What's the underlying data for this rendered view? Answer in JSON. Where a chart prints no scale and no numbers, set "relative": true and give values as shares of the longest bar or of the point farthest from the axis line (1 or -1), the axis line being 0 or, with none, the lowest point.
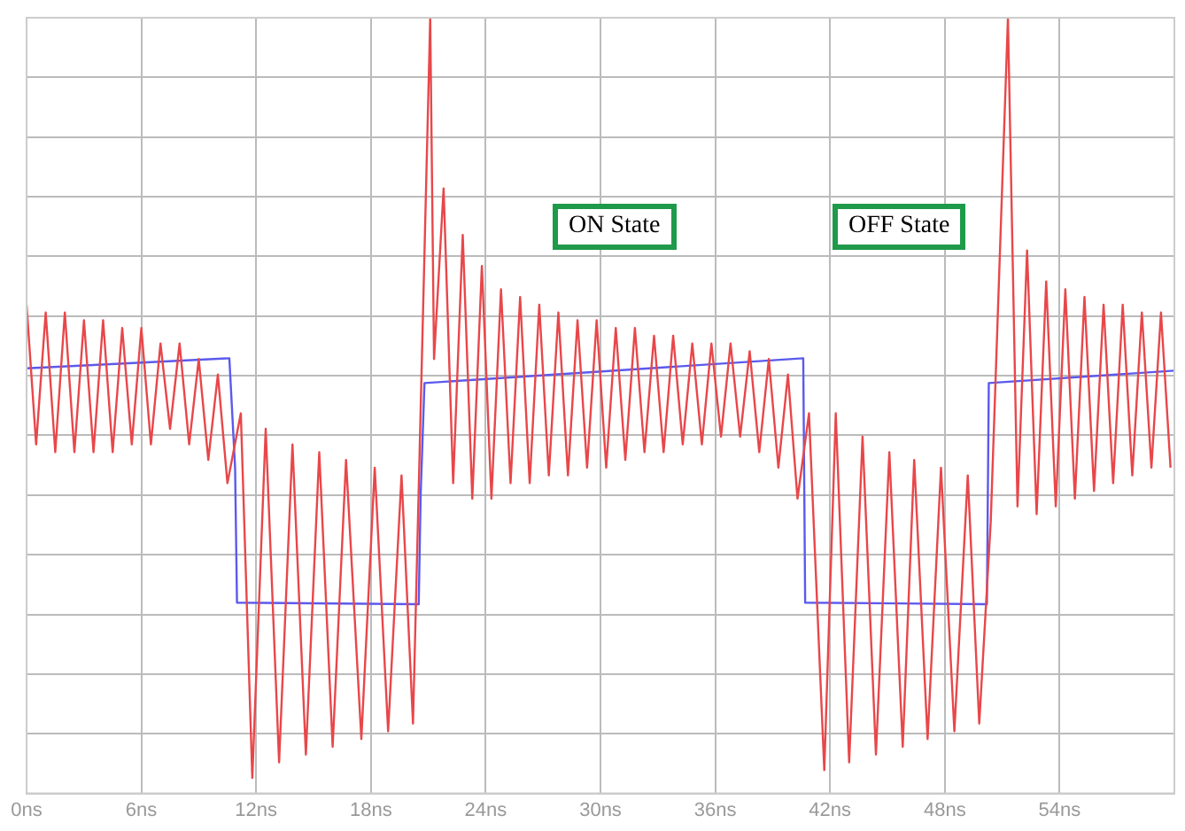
{
  "chart_data": {
    "type": "line",
    "relative": true,
    "tick_labels": "x",
    "grid": true,
    "legend": false,
    "marker": "none",
    "line_style": "solid",
    "xlim": [
      0,
      60
    ],
    "xticks": [
      {
        "value": 0,
        "label": "0ns"
      },
      {
        "value": 6,
        "label": "6ns"
      },
      {
        "value": 12,
        "label": "12ns"
      },
      {
        "value": 18,
        "label": "18ns"
      },
      {
        "value": 24,
        "label": "24ns"
      },
      {
        "value": 30,
        "label": "30ns"
      },
      {
        "value": 36,
        "label": "36ns"
      },
      {
        "value": 42,
        "label": "42ns"
      },
      {
        "value": 48,
        "label": "48ns"
      },
      {
        "value": 54,
        "label": "54ns"
      }
    ],
    "annotations": [
      "ON State",
      "OFF State"
    ],
    "series": [
      {
        "color": "#e8474a",
        "x": [
          0,
          0.5,
          1.0,
          1.5,
          2.0,
          2.5,
          3.0,
          3.5,
          4.0,
          4.5,
          5.0,
          5.5,
          6.0,
          6.5,
          7.0,
          7.5,
          8.0,
          8.5,
          9.0,
          9.5,
          10.0,
          10.5,
          11.2,
          11.8,
          12.5,
          13.2,
          13.9,
          14.6,
          15.3,
          16.0,
          16.7,
          17.5,
          18.2,
          18.9,
          19.6,
          20.2,
          21.1,
          21.3,
          21.8,
          22.3,
          22.8,
          23.3,
          23.8,
          24.3,
          24.8,
          25.3,
          25.8,
          26.3,
          26.8,
          27.3,
          27.8,
          28.3,
          28.8,
          29.3,
          29.8,
          30.3,
          30.8,
          31.3,
          31.8,
          32.3,
          32.8,
          33.3,
          33.8,
          34.3,
          34.8,
          35.3,
          35.8,
          36.3,
          36.8,
          37.3,
          37.8,
          38.3,
          38.8,
          39.3,
          39.8,
          40.3,
          40.9,
          41.7,
          42.3,
          43.0,
          43.7,
          44.4,
          45.1,
          45.8,
          46.4,
          47.1,
          47.8,
          48.5,
          49.2,
          49.8,
          50.4,
          51.3,
          51.8,
          52.3,
          52.8,
          53.3,
          53.8,
          54.3,
          54.8,
          55.3,
          55.8,
          56.3,
          56.8,
          57.3,
          57.8,
          58.3,
          58.8,
          59.3,
          59.8
        ],
        "values": [
          0.63,
          0.45,
          0.62,
          0.44,
          0.62,
          0.44,
          0.61,
          0.44,
          0.61,
          0.44,
          0.6,
          0.45,
          0.6,
          0.45,
          0.58,
          0.47,
          0.58,
          0.45,
          0.56,
          0.43,
          0.54,
          0.4,
          0.49,
          0.02,
          0.47,
          0.04,
          0.45,
          0.05,
          0.44,
          0.06,
          0.43,
          0.07,
          0.42,
          0.08,
          0.41,
          0.09,
          1.0,
          0.56,
          0.78,
          0.4,
          0.72,
          0.38,
          0.68,
          0.38,
          0.65,
          0.4,
          0.64,
          0.4,
          0.63,
          0.41,
          0.62,
          0.41,
          0.61,
          0.42,
          0.61,
          0.42,
          0.6,
          0.43,
          0.6,
          0.44,
          0.59,
          0.44,
          0.59,
          0.45,
          0.58,
          0.45,
          0.58,
          0.46,
          0.58,
          0.46,
          0.57,
          0.44,
          0.56,
          0.42,
          0.54,
          0.38,
          0.49,
          0.03,
          0.49,
          0.04,
          0.46,
          0.05,
          0.44,
          0.06,
          0.43,
          0.07,
          0.42,
          0.08,
          0.41,
          0.09,
          0.35,
          1.0,
          0.37,
          0.7,
          0.36,
          0.66,
          0.37,
          0.65,
          0.38,
          0.64,
          0.39,
          0.63,
          0.4,
          0.63,
          0.41,
          0.62,
          0.42,
          0.62,
          0.42
        ]
      },
      {
        "color": "#5a5aee",
        "x": [
          0,
          10.6,
          10.9,
          11.0,
          20.5,
          20.6,
          20.8,
          40.6,
          40.7,
          50.2,
          50.3,
          60
        ],
        "values": [
          0.548,
          0.561,
          0.42,
          0.246,
          0.244,
          0.385,
          0.529,
          0.561,
          0.246,
          0.244,
          0.529,
          0.545
        ]
      }
    ]
  }
}
